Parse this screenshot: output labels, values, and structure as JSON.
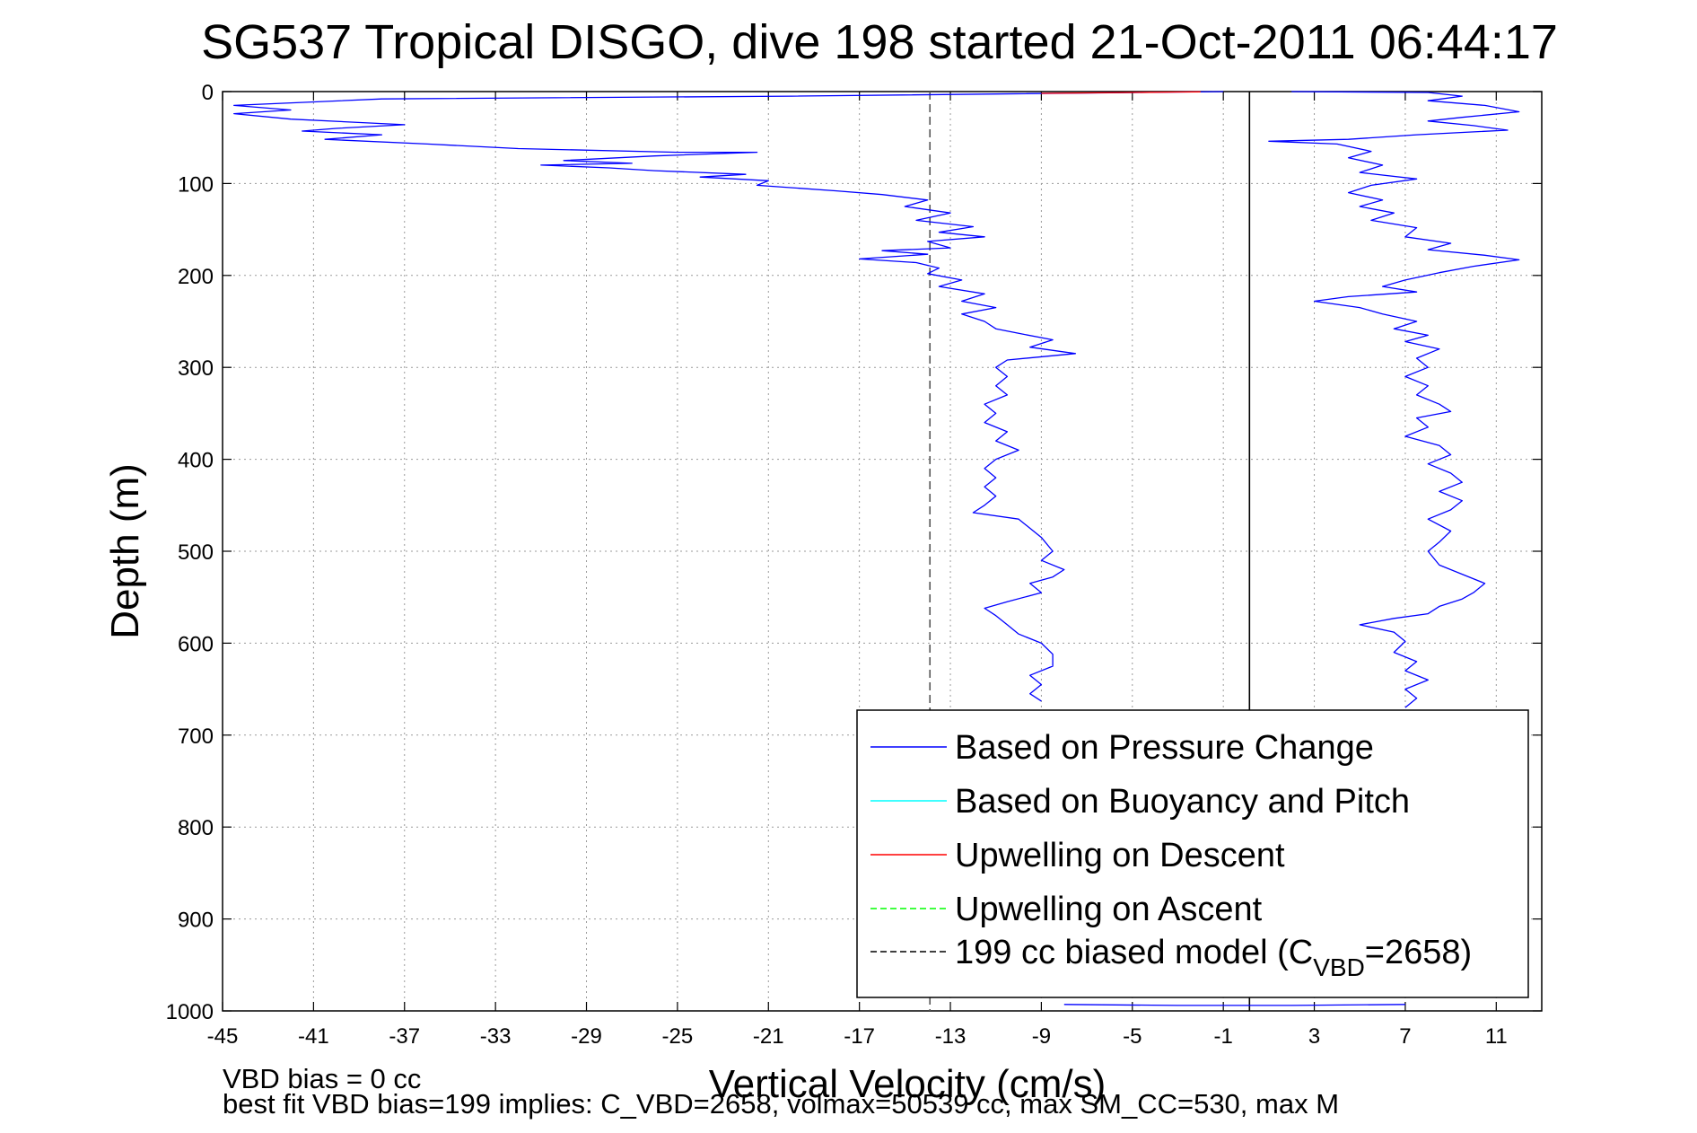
{
  "chart_data": {
    "type": "line",
    "title": "SG537 Tropical DISGO, dive 198 started 21-Oct-2011 06:44:17",
    "xlabel": "Vertical Velocity (cm/s)",
    "ylabel": "Depth (m)",
    "xlim": [
      -45,
      13
    ],
    "ylim": [
      0,
      1000
    ],
    "y_reversed": true,
    "grid": true,
    "x_ticks": [
      -45,
      -41,
      -37,
      -33,
      -29,
      -25,
      -21,
      -17,
      -13,
      -9,
      -5,
      -1,
      3,
      7,
      11
    ],
    "y_ticks": [
      0,
      100,
      200,
      300,
      400,
      500,
      600,
      700,
      800,
      900,
      1000
    ],
    "legend_position": "bottom-right",
    "legend": [
      {
        "label": "Based on Pressure Change",
        "color": "#0000ff",
        "dash": "solid"
      },
      {
        "label": "Based on Buoyancy and Pitch",
        "color": "#00ffff",
        "dash": "solid"
      },
      {
        "label": "Upwelling on Descent",
        "color": "#ff0000",
        "dash": "solid"
      },
      {
        "label": "Upwelling on Ascent",
        "color": "#00ff00",
        "dash": "dashed"
      },
      {
        "label": "199 cc biased model (C",
        "sub": "VBD",
        "suffix": "=2658)",
        "color": "#000000",
        "dash": "dashed"
      }
    ],
    "series": [
      {
        "name": "Based on Pressure Change",
        "color": "#0000ff",
        "points": [
          [
            -1,
            0
          ],
          [
            -20,
            5
          ],
          [
            -38,
            8
          ],
          [
            -44.5,
            15
          ],
          [
            -42,
            20
          ],
          [
            -44.5,
            24
          ],
          [
            -42,
            30
          ],
          [
            -37,
            36
          ],
          [
            -40,
            40
          ],
          [
            -41.5,
            43
          ],
          [
            -38,
            47
          ],
          [
            -40.5,
            52
          ],
          [
            -36,
            57
          ],
          [
            -32,
            62
          ],
          [
            -25,
            66
          ],
          [
            -21.5,
            66
          ],
          [
            -26,
            70
          ],
          [
            -30,
            75
          ],
          [
            -27,
            78
          ],
          [
            -31,
            80
          ],
          [
            -28,
            83
          ],
          [
            -26,
            86
          ],
          [
            -22,
            90
          ],
          [
            -24,
            93
          ],
          [
            -21,
            97
          ],
          [
            -21.5,
            102
          ],
          [
            -18,
            108
          ],
          [
            -16,
            112
          ],
          [
            -14,
            118
          ],
          [
            -15,
            125
          ],
          [
            -13,
            132
          ],
          [
            -14.5,
            140
          ],
          [
            -12,
            147
          ],
          [
            -13.5,
            153
          ],
          [
            -11.5,
            158
          ],
          [
            -14,
            163
          ],
          [
            -13,
            170
          ],
          [
            -16,
            173
          ],
          [
            -14,
            177
          ],
          [
            -17,
            182
          ],
          [
            -14.5,
            186
          ],
          [
            -13.5,
            192
          ],
          [
            -14,
            198
          ],
          [
            -12.5,
            205
          ],
          [
            -13.5,
            212
          ],
          [
            -11.5,
            220
          ],
          [
            -12.5,
            228
          ],
          [
            -11,
            235
          ],
          [
            -12.5,
            242
          ],
          [
            -11.5,
            250
          ],
          [
            -11,
            258
          ],
          [
            -10,
            263
          ],
          [
            -8.5,
            270
          ],
          [
            -9.5,
            278
          ],
          [
            -7.5,
            285
          ],
          [
            -10.5,
            292
          ],
          [
            -11,
            300
          ],
          [
            -10.5,
            310
          ],
          [
            -11,
            320
          ],
          [
            -10.5,
            330
          ],
          [
            -11.5,
            340
          ],
          [
            -11,
            350
          ],
          [
            -11.5,
            360
          ],
          [
            -10.5,
            370
          ],
          [
            -11,
            380
          ],
          [
            -10,
            390
          ],
          [
            -11,
            400
          ],
          [
            -11.5,
            410
          ],
          [
            -11,
            420
          ],
          [
            -11.5,
            430
          ],
          [
            -11,
            440
          ],
          [
            -11.5,
            450
          ],
          [
            -12,
            458
          ],
          [
            -10,
            465
          ],
          [
            -9.5,
            475
          ],
          [
            -9,
            485
          ],
          [
            -8.5,
            500
          ],
          [
            -9,
            510
          ],
          [
            -8,
            520
          ],
          [
            -8.5,
            528
          ],
          [
            -9.5,
            535
          ],
          [
            -9,
            545
          ],
          [
            -10.5,
            555
          ],
          [
            -11.5,
            562
          ],
          [
            -11,
            570
          ],
          [
            -10.5,
            580
          ],
          [
            -10,
            590
          ],
          [
            -9,
            600
          ],
          [
            -8.5,
            612
          ],
          [
            -8.5,
            625
          ],
          [
            -9.5,
            635
          ],
          [
            -9,
            645
          ],
          [
            -9.5,
            655
          ],
          [
            -9,
            663
          ]
        ]
      },
      {
        "name": "Based on Pressure Change",
        "color": "#0000ff",
        "points": [
          [
            2,
            0
          ],
          [
            8,
            1
          ],
          [
            9.5,
            5
          ],
          [
            8,
            10
          ],
          [
            10.5,
            15
          ],
          [
            12,
            22
          ],
          [
            9.5,
            28
          ],
          [
            8,
            32
          ],
          [
            10,
            37
          ],
          [
            11.5,
            42
          ],
          [
            7.5,
            47
          ],
          [
            4.5,
            52
          ],
          [
            1,
            54
          ],
          [
            4,
            57
          ],
          [
            5.5,
            65
          ],
          [
            4.5,
            72
          ],
          [
            6,
            80
          ],
          [
            5,
            88
          ],
          [
            7.5,
            95
          ],
          [
            5.5,
            102
          ],
          [
            4.5,
            110
          ],
          [
            6,
            118
          ],
          [
            5,
            125
          ],
          [
            6.5,
            132
          ],
          [
            5.5,
            140
          ],
          [
            7.5,
            148
          ],
          [
            7,
            158
          ],
          [
            9,
            165
          ],
          [
            8,
            172
          ],
          [
            10.5,
            178
          ],
          [
            12,
            183
          ],
          [
            10,
            190
          ],
          [
            8.5,
            197
          ],
          [
            7,
            205
          ],
          [
            6,
            212
          ],
          [
            7.5,
            218
          ],
          [
            4.5,
            223
          ],
          [
            3,
            228
          ],
          [
            5,
            235
          ],
          [
            6,
            242
          ],
          [
            7.5,
            250
          ],
          [
            6.5,
            258
          ],
          [
            8,
            265
          ],
          [
            7,
            272
          ],
          [
            8.5,
            280
          ],
          [
            7.5,
            290
          ],
          [
            8,
            300
          ],
          [
            7,
            310
          ],
          [
            8,
            320
          ],
          [
            7.5,
            330
          ],
          [
            8.5,
            340
          ],
          [
            9,
            348
          ],
          [
            7.5,
            355
          ],
          [
            8,
            365
          ],
          [
            7,
            375
          ],
          [
            8.5,
            385
          ],
          [
            9,
            395
          ],
          [
            8,
            405
          ],
          [
            9,
            415
          ],
          [
            9.5,
            425
          ],
          [
            8.5,
            435
          ],
          [
            9.5,
            445
          ],
          [
            9,
            455
          ],
          [
            8,
            465
          ],
          [
            9,
            478
          ],
          [
            8.5,
            490
          ],
          [
            8,
            500
          ],
          [
            8.5,
            515
          ],
          [
            9.5,
            525
          ],
          [
            10.5,
            535
          ],
          [
            10,
            545
          ],
          [
            9.5,
            552
          ],
          [
            8.5,
            560
          ],
          [
            8,
            568
          ],
          [
            6.5,
            573
          ],
          [
            5,
            580
          ],
          [
            6.5,
            588
          ],
          [
            7,
            598
          ],
          [
            6.5,
            610
          ],
          [
            7.5,
            620
          ],
          [
            7,
            630
          ],
          [
            8,
            640
          ],
          [
            7,
            650
          ],
          [
            7.5,
            660
          ],
          [
            7,
            670
          ]
        ]
      },
      {
        "name": "Based on Pressure Change",
        "color": "#0000ff",
        "points": [
          [
            -8,
            993
          ],
          [
            -3,
            994
          ],
          [
            2,
            994
          ],
          [
            7,
            993
          ]
        ]
      },
      {
        "name": "Upwelling on Descent",
        "color": "#ff0000",
        "points": [
          [
            -9,
            2
          ],
          [
            -7,
            1.5
          ],
          [
            -5,
            1
          ],
          [
            -3,
            0.5
          ],
          [
            -2,
            0.3
          ]
        ]
      }
    ],
    "reference_lines": [
      {
        "x": -13.9,
        "color": "#555555",
        "dash": "dashed"
      },
      {
        "x": 0.15,
        "color": "#000000",
        "dash": "solid"
      }
    ]
  },
  "footer": {
    "line1": "VBD bias = 0 cc",
    "line2": "best fit VBD bias=199 implies: C_VBD=2658, volmax=50539 cc, max SM_CC=530, max M"
  }
}
